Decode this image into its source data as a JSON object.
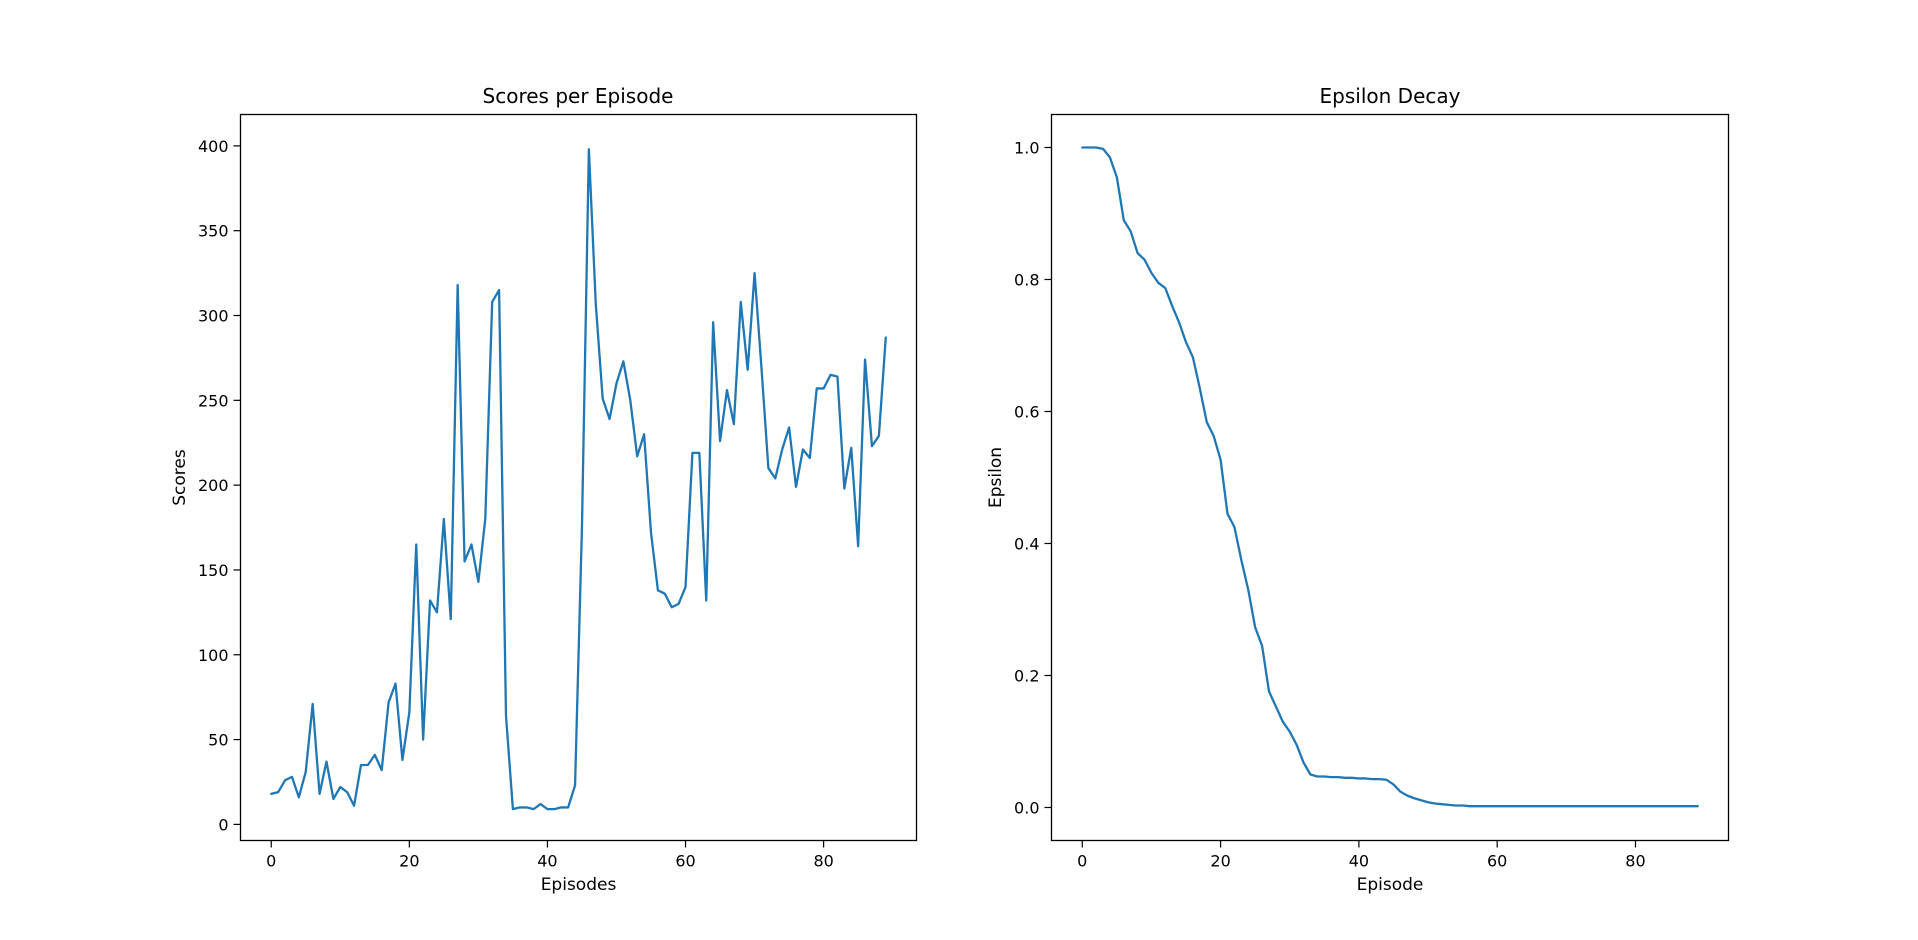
{
  "chart_data": [
    {
      "type": "line",
      "title": "Scores per Episode",
      "xlabel": "Episodes",
      "ylabel": "Scores",
      "xlim": [
        -4.45,
        93.45
      ],
      "ylim": [
        -9.5,
        418.5
      ],
      "xticks": [
        0,
        20,
        40,
        60,
        80
      ],
      "yticks": [
        0,
        50,
        100,
        150,
        200,
        250,
        300,
        350,
        400
      ],
      "grid": false,
      "series": [
        {
          "color": "#1f77b4",
          "x": [
            0,
            1,
            2,
            3,
            4,
            5,
            6,
            7,
            8,
            9,
            10,
            11,
            12,
            13,
            14,
            15,
            16,
            17,
            18,
            19,
            20,
            21,
            22,
            23,
            24,
            25,
            26,
            27,
            28,
            29,
            30,
            31,
            32,
            33,
            34,
            35,
            36,
            37,
            38,
            39,
            40,
            41,
            42,
            43,
            44,
            45,
            46,
            47,
            48,
            49,
            50,
            51,
            52,
            53,
            54,
            55,
            56,
            57,
            58,
            59,
            60,
            61,
            62,
            63,
            64,
            65,
            66,
            67,
            68,
            69,
            70,
            71,
            72,
            73,
            74,
            75,
            76,
            77,
            78,
            79,
            80,
            81,
            82,
            83,
            84,
            85,
            86,
            87,
            88,
            89
          ],
          "values": [
            18,
            19,
            26,
            28,
            16,
            31,
            71,
            18,
            37,
            15,
            22,
            19,
            11,
            35,
            35,
            41,
            32,
            72,
            83,
            38,
            66,
            165,
            50,
            132,
            125,
            180,
            121,
            318,
            155,
            165,
            143,
            180,
            308,
            315,
            64,
            9,
            10,
            10,
            9,
            12,
            9,
            9,
            10,
            10,
            23,
            175,
            398,
            307,
            251,
            239,
            260,
            273,
            250,
            217,
            230,
            172,
            138,
            136,
            128,
            130,
            140,
            219,
            219,
            132,
            296,
            226,
            256,
            236,
            308,
            268,
            325,
            269,
            210,
            204,
            221,
            234,
            199,
            221,
            216,
            257,
            257,
            265,
            264,
            198,
            222,
            164,
            274,
            223,
            229,
            287
          ]
        }
      ]
    },
    {
      "type": "line",
      "title": "Epsilon Decay",
      "xlabel": "Episode",
      "ylabel": "Epsilon",
      "xlim": [
        -4.45,
        93.45
      ],
      "ylim": [
        -0.05,
        1.05
      ],
      "xticks": [
        0,
        20,
        40,
        60,
        80
      ],
      "yticks": [
        0.0,
        0.2,
        0.4,
        0.6,
        0.8,
        1.0
      ],
      "grid": false,
      "series": [
        {
          "color": "#1f77b4",
          "x": [
            0,
            1,
            2,
            3,
            4,
            5,
            6,
            7,
            8,
            9,
            10,
            11,
            12,
            13,
            14,
            15,
            16,
            17,
            18,
            19,
            20,
            21,
            22,
            23,
            24,
            25,
            26,
            27,
            28,
            29,
            30,
            31,
            32,
            33,
            34,
            35,
            36,
            37,
            38,
            39,
            40,
            41,
            42,
            43,
            44,
            45,
            46,
            47,
            48,
            49,
            50,
            51,
            52,
            53,
            54,
            55,
            56,
            57,
            58,
            59,
            60,
            61,
            62,
            63,
            64,
            65,
            66,
            67,
            68,
            69,
            70,
            71,
            72,
            73,
            74,
            75,
            76,
            77,
            78,
            79,
            80,
            81,
            82,
            83,
            84,
            85,
            86,
            87,
            88,
            89
          ],
          "values": [
            1.0,
            1.0,
            1.0,
            0.998,
            0.985,
            0.955,
            0.89,
            0.873,
            0.84,
            0.83,
            0.81,
            0.795,
            0.787,
            0.76,
            0.735,
            0.705,
            0.682,
            0.635,
            0.584,
            0.563,
            0.527,
            0.445,
            0.425,
            0.375,
            0.33,
            0.273,
            0.245,
            0.176,
            0.153,
            0.13,
            0.115,
            0.095,
            0.068,
            0.05,
            0.047,
            0.047,
            0.046,
            0.046,
            0.045,
            0.045,
            0.044,
            0.044,
            0.043,
            0.043,
            0.042,
            0.035,
            0.024,
            0.018,
            0.014,
            0.011,
            0.008,
            0.006,
            0.005,
            0.004,
            0.003,
            0.003,
            0.002,
            0.002,
            0.002,
            0.002,
            0.002,
            0.002,
            0.002,
            0.002,
            0.002,
            0.002,
            0.002,
            0.002,
            0.002,
            0.002,
            0.002,
            0.002,
            0.002,
            0.002,
            0.002,
            0.002,
            0.002,
            0.002,
            0.002,
            0.002,
            0.002,
            0.002,
            0.002,
            0.002,
            0.002,
            0.002,
            0.002,
            0.002,
            0.002,
            0.002
          ]
        }
      ]
    }
  ]
}
